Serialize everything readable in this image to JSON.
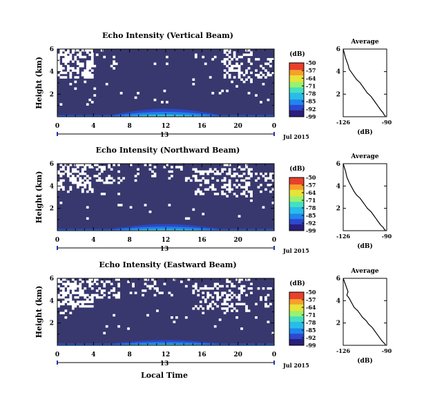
{
  "figure": {
    "xlabel": "Local Time",
    "date_label": "Jul 2015",
    "colorbar_label": "(dB)",
    "average_title": "Average",
    "average_xlabel": "(dB)"
  },
  "chart_data": [
    {
      "type": "heatmap",
      "title": "Echo Intensity (Vertical Beam)",
      "ylabel": "Height (km)",
      "x_ticks": [
        "0",
        "4",
        "8",
        "12",
        "16",
        "20",
        "0"
      ],
      "xlim": [
        0,
        24
      ],
      "day_label": "13",
      "y_ticks": [
        "2",
        "4",
        "6"
      ],
      "ylim": [
        0,
        6
      ],
      "colorbar_ticks": [
        "-50",
        "-57",
        "-64",
        "-71",
        "-78",
        "-85",
        "-92",
        "-99"
      ],
      "clim": [
        -99,
        -50
      ],
      "average_profile": {
        "x_ticks": [
          "-126",
          "-90"
        ],
        "xlim": [
          -126,
          -90
        ],
        "ylim": [
          0,
          6
        ],
        "y_ticks": [
          "2",
          "4",
          "6"
        ],
        "x": [
          -126,
          -124,
          -122,
          -121,
          -119,
          -117,
          -115,
          -112,
          -110,
          -108,
          -106,
          -103,
          -101,
          -99,
          -97,
          -95,
          -93,
          -92,
          -91
        ],
        "y": [
          6.0,
          5.2,
          4.6,
          4.2,
          3.9,
          3.6,
          3.3,
          3.0,
          2.7,
          2.4,
          2.1,
          1.8,
          1.5,
          1.2,
          0.9,
          0.6,
          0.35,
          0.15,
          0.05
        ]
      }
    },
    {
      "type": "heatmap",
      "title": "Echo Intensity (Northward Beam)",
      "ylabel": "Height (km)",
      "x_ticks": [
        "0",
        "4",
        "8",
        "12",
        "16",
        "20",
        "0"
      ],
      "xlim": [
        0,
        24
      ],
      "day_label": "13",
      "y_ticks": [
        "2",
        "4",
        "6"
      ],
      "ylim": [
        0,
        6
      ],
      "colorbar_ticks": [
        "-50",
        "-57",
        "-64",
        "-71",
        "-78",
        "-85",
        "-92",
        "-99"
      ],
      "clim": [
        -99,
        -50
      ],
      "average_profile": {
        "x_ticks": [
          "-126",
          "-90"
        ],
        "xlim": [
          -126,
          -90
        ],
        "ylim": [
          0,
          6
        ],
        "y_ticks": [
          "2",
          "4",
          "6"
        ],
        "x": [
          -126,
          -124,
          -123,
          -121,
          -119,
          -117,
          -115,
          -112,
          -110,
          -108,
          -106,
          -103,
          -101,
          -99,
          -97,
          -95,
          -93,
          -92,
          -91
        ],
        "y": [
          6.0,
          5.3,
          4.8,
          4.3,
          3.9,
          3.5,
          3.2,
          2.9,
          2.6,
          2.3,
          2.0,
          1.7,
          1.4,
          1.1,
          0.8,
          0.5,
          0.3,
          0.12,
          0.04
        ]
      }
    },
    {
      "type": "heatmap",
      "title": "Echo Intensity (Eastward Beam)",
      "ylabel": "Height (km)",
      "x_ticks": [
        "0",
        "4",
        "8",
        "12",
        "16",
        "20",
        "0"
      ],
      "xlim": [
        0,
        24
      ],
      "day_label": "13",
      "y_ticks": [
        "2",
        "4",
        "6"
      ],
      "ylim": [
        0,
        6
      ],
      "colorbar_ticks": [
        "-50",
        "-57",
        "-64",
        "-71",
        "-78",
        "-85",
        "-92",
        "-99"
      ],
      "clim": [
        -99,
        -50
      ],
      "average_profile": {
        "x_ticks": [
          "-126",
          "-90"
        ],
        "xlim": [
          -126,
          -90
        ],
        "ylim": [
          0,
          6
        ],
        "y_ticks": [
          "2",
          "4",
          "6"
        ],
        "x": [
          -126,
          -124,
          -122,
          -123,
          -121,
          -119,
          -117,
          -114,
          -112,
          -110,
          -107,
          -105,
          -102,
          -100,
          -98,
          -96,
          -94,
          -92,
          -91
        ],
        "y": [
          6.0,
          5.4,
          4.8,
          4.5,
          4.2,
          3.8,
          3.4,
          3.1,
          2.8,
          2.5,
          2.2,
          1.9,
          1.6,
          1.3,
          1.0,
          0.7,
          0.4,
          0.18,
          0.05
        ]
      }
    }
  ],
  "colors": {
    "background": "#38386e",
    "colormap": [
      "#2a1f7a",
      "#2d49cf",
      "#1f86ee",
      "#2bbbe8",
      "#45dfc1",
      "#98f26f",
      "#e6e33a",
      "#f7a02a",
      "#e8402a"
    ]
  }
}
